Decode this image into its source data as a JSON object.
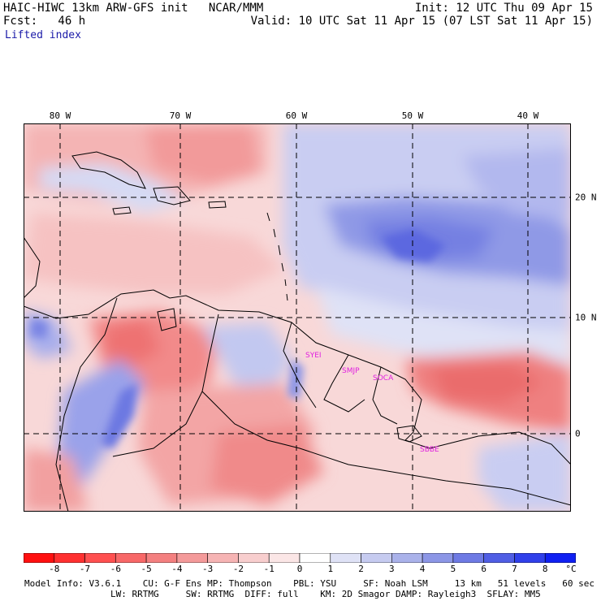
{
  "header": {
    "title": "HAIC-HIWC 13km ARW-GFS init   NCAR/MMM",
    "init": "Init: 12 UTC Thu 09 Apr 15",
    "fcst": "Fcst:   46 h",
    "valid": "Valid: 10 UTC Sat 11 Apr 15 (07 LST Sat 11 Apr 15)",
    "field": "Lifted index"
  },
  "map": {
    "lon_labels": [
      "80 W",
      "70 W",
      "60 W",
      "50 W",
      "40 W"
    ],
    "lat_labels": [
      "20 N",
      "10 N",
      "0"
    ],
    "stations": [
      "SYEI",
      "SMJP",
      "SOCA",
      "SBBE"
    ],
    "colors": {
      "negative": "#f08080",
      "positive": "#7080e0",
      "line": "#000000",
      "station": "#e020e0"
    }
  },
  "colorbar": {
    "levels": [
      "-8",
      "-7",
      "-6",
      "-5",
      "-4",
      "-3",
      "-2",
      "-1",
      "0",
      "1",
      "2",
      "3",
      "4",
      "5",
      "6",
      "7",
      "8"
    ],
    "unit": "°C",
    "colors": [
      "#ff1010",
      "#ff3030",
      "#ff5050",
      "#f86868",
      "#f48080",
      "#f49a9a",
      "#f6b4b4",
      "#f8cece",
      "#fbe6e6",
      "#ffffff",
      "#dfe2f6",
      "#c6cbf0",
      "#aab2ea",
      "#8c96e6",
      "#6e7ae4",
      "#505ee4",
      "#3040ea",
      "#1020f2"
    ]
  },
  "footer": {
    "line1": "Model Info: V3.6.1    CU: G-F Ens MP: Thompson    PBL: YSU     SF: Noah LSM     13 km   51 levels   60 sec",
    "line2": "                LW: RRTMG     SW: RRTMG  DIFF: full    KM: 2D Smagor DAMP: Rayleigh3  SFLAY: MM5"
  }
}
